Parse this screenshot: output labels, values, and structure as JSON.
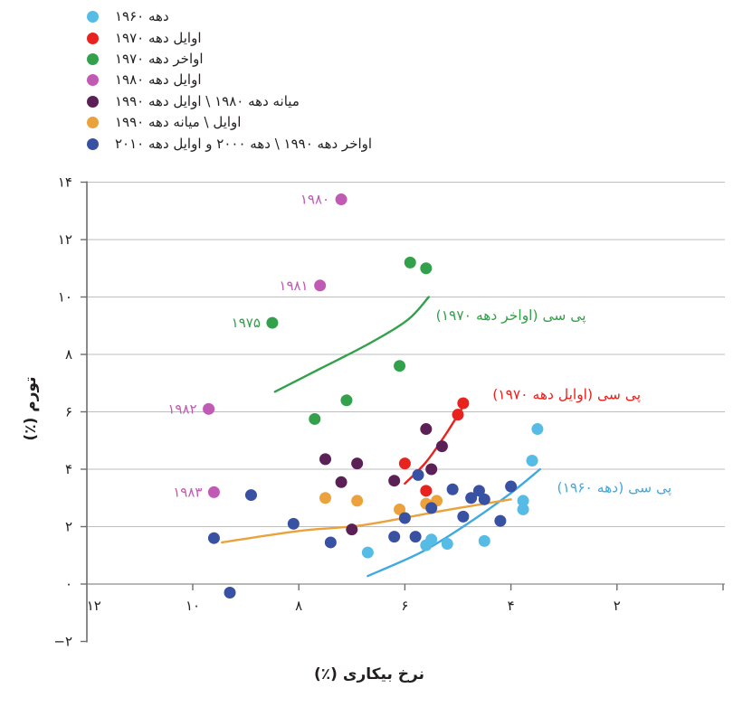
{
  "chart_data": {
    "type": "scatter",
    "title": "",
    "xlabel": "نرخ بیکاری (٪)",
    "ylabel": "تورم (٪)",
    "x_axis": {
      "reversed": true,
      "min": 0,
      "max": 12,
      "tick_values": [
        12,
        10,
        8,
        6,
        4,
        2
      ],
      "tick_labels": [
        "۱۲",
        "۱۰",
        "۸",
        "۶",
        "۴",
        "۲"
      ],
      "tick_marks": [
        10,
        8,
        6,
        4,
        2,
        0
      ]
    },
    "y_axis": {
      "min": -2,
      "max": 14,
      "tick_values": [
        14,
        12,
        10,
        8,
        6,
        4,
        2,
        0,
        -2
      ],
      "tick_labels": [
        "۱۴",
        "۱۲",
        "۱۰",
        "۸",
        "۶",
        "۴",
        "۲",
        "۰",
        "−۲"
      ],
      "gridline_values": [
        14,
        12,
        10,
        8,
        6,
        4,
        2
      ]
    },
    "series": [
      {
        "id": "decade-1960s",
        "label": "دهه ۱۹۶۰",
        "color": "#56bce6",
        "points": [
          [
            3.5,
            5.4
          ],
          [
            3.6,
            4.3
          ],
          [
            3.77,
            2.9
          ],
          [
            3.77,
            2.6
          ],
          [
            4.5,
            1.5
          ],
          [
            5.2,
            1.4
          ],
          [
            5.5,
            1.55
          ],
          [
            5.6,
            1.35
          ],
          [
            6.7,
            1.1
          ]
        ]
      },
      {
        "id": "early-1970s",
        "label": "اوایل دهه ۱۹۷۰",
        "color": "#e8231f",
        "points": [
          [
            4.9,
            6.3
          ],
          [
            5.0,
            5.9
          ],
          [
            6.0,
            4.2
          ],
          [
            5.6,
            3.25
          ]
        ]
      },
      {
        "id": "late-1970s",
        "label": "اواخر دهه ۱۹۷۰",
        "color": "#33a14b",
        "points": [
          [
            5.9,
            11.2
          ],
          [
            5.6,
            11.0
          ],
          [
            8.5,
            9.1
          ],
          [
            6.1,
            7.6
          ],
          [
            7.1,
            6.4
          ],
          [
            7.7,
            5.75
          ]
        ]
      },
      {
        "id": "early-1980s",
        "label": "اوایل دهه ۱۹۸۰",
        "color": "#c05ab5",
        "points": [
          [
            7.2,
            13.4
          ],
          [
            7.6,
            10.4
          ],
          [
            9.7,
            6.1
          ],
          [
            9.6,
            3.2
          ]
        ]
      },
      {
        "id": "mid1980s-early1990s",
        "label": "میانه دهه ۱۹۸۰ \\ اوایل دهه ۱۹۹۰",
        "color": "#5b2157",
        "points": [
          [
            5.6,
            5.4
          ],
          [
            5.3,
            4.8
          ],
          [
            7.5,
            4.35
          ],
          [
            6.9,
            4.2
          ],
          [
            5.5,
            4.0
          ],
          [
            7.2,
            3.55
          ],
          [
            6.2,
            3.6
          ],
          [
            7.0,
            1.9
          ]
        ]
      },
      {
        "id": "early-mid-1990s",
        "label": "اوایل \\ میانه دهه ۱۹۹۰",
        "color": "#eba23c",
        "points": [
          [
            7.5,
            3.0
          ],
          [
            6.9,
            2.9
          ],
          [
            5.6,
            2.8
          ],
          [
            5.4,
            2.9
          ],
          [
            6.1,
            2.6
          ]
        ]
      },
      {
        "id": "late1990s-2000s-early2010s",
        "label": "اواخر دهه ۱۹۹۰ \\ دهه ۲۰۰۰ و اوایل دهه ۲۰۱۰",
        "color": "#3951a3",
        "points": [
          [
            9.3,
            -0.3
          ],
          [
            9.6,
            1.6
          ],
          [
            8.9,
            3.1
          ],
          [
            8.1,
            2.1
          ],
          [
            7.4,
            1.45
          ],
          [
            6.2,
            1.65
          ],
          [
            5.8,
            1.65
          ],
          [
            6.0,
            2.3
          ],
          [
            5.5,
            2.65
          ],
          [
            4.9,
            2.35
          ],
          [
            4.2,
            2.2
          ],
          [
            5.75,
            3.8
          ],
          [
            5.1,
            3.3
          ],
          [
            4.6,
            3.25
          ],
          [
            4.75,
            3.0
          ],
          [
            4.5,
            2.95
          ],
          [
            4.0,
            3.4
          ]
        ]
      }
    ],
    "curves": [
      {
        "id": "pc-1960s",
        "label": "پی سی (دهه ۱۹۶۰)",
        "color": "#3fa9e1",
        "points": [
          [
            6.7,
            0.28
          ],
          [
            5.7,
            1.1
          ],
          [
            4.9,
            2.0
          ],
          [
            4.05,
            3.1
          ],
          [
            3.45,
            4.0
          ]
        ],
        "label_u": 2.05,
        "label_i": 3.35
      },
      {
        "id": "pc-early-1970s",
        "label": "پی سی (اوایل دهه ۱۹۷۰)",
        "color": "#e8231f",
        "points": [
          [
            6.0,
            3.5
          ],
          [
            5.6,
            4.25
          ],
          [
            5.2,
            5.3
          ],
          [
            4.85,
            6.35
          ]
        ],
        "label_u": 2.95,
        "label_i": 6.6
      },
      {
        "id": "pc-late-1970s",
        "label": "پی سی (اواخر دهه ۱۹۷۰)",
        "color": "#33a14b",
        "points": [
          [
            8.45,
            6.7
          ],
          [
            7.6,
            7.5
          ],
          [
            6.7,
            8.35
          ],
          [
            5.95,
            9.2
          ],
          [
            5.55,
            10.0
          ]
        ],
        "label_u": 4.0,
        "label_i": 9.35
      },
      {
        "id": "pc-1990s-trend",
        "label": "",
        "color": "#eba23c",
        "points": [
          [
            9.45,
            1.45
          ],
          [
            8.0,
            1.85
          ],
          [
            6.8,
            2.05
          ],
          [
            5.3,
            2.55
          ],
          [
            4.0,
            2.95
          ]
        ],
        "label_u": null,
        "label_i": null
      }
    ],
    "annotations": [
      {
        "text": "۱۹۸۰",
        "color": "#c05ab5",
        "u": 7.2,
        "i": 13.4
      },
      {
        "text": "۱۹۸۱",
        "color": "#c05ab5",
        "u": 7.6,
        "i": 10.4
      },
      {
        "text": "۱۹۷۵",
        "color": "#33a14b",
        "u": 8.5,
        "i": 9.1
      },
      {
        "text": "۱۹۸۲",
        "color": "#c05ab5",
        "u": 9.7,
        "i": 6.1
      },
      {
        "text": "۱۹۸۳",
        "color": "#c05ab5",
        "u": 9.6,
        "i": 3.2
      }
    ],
    "colors": {
      "grid": "#bdbdbd",
      "zero_line": "#8c8c8c",
      "axis": "#6e6e6e",
      "text": "#231f20"
    }
  }
}
